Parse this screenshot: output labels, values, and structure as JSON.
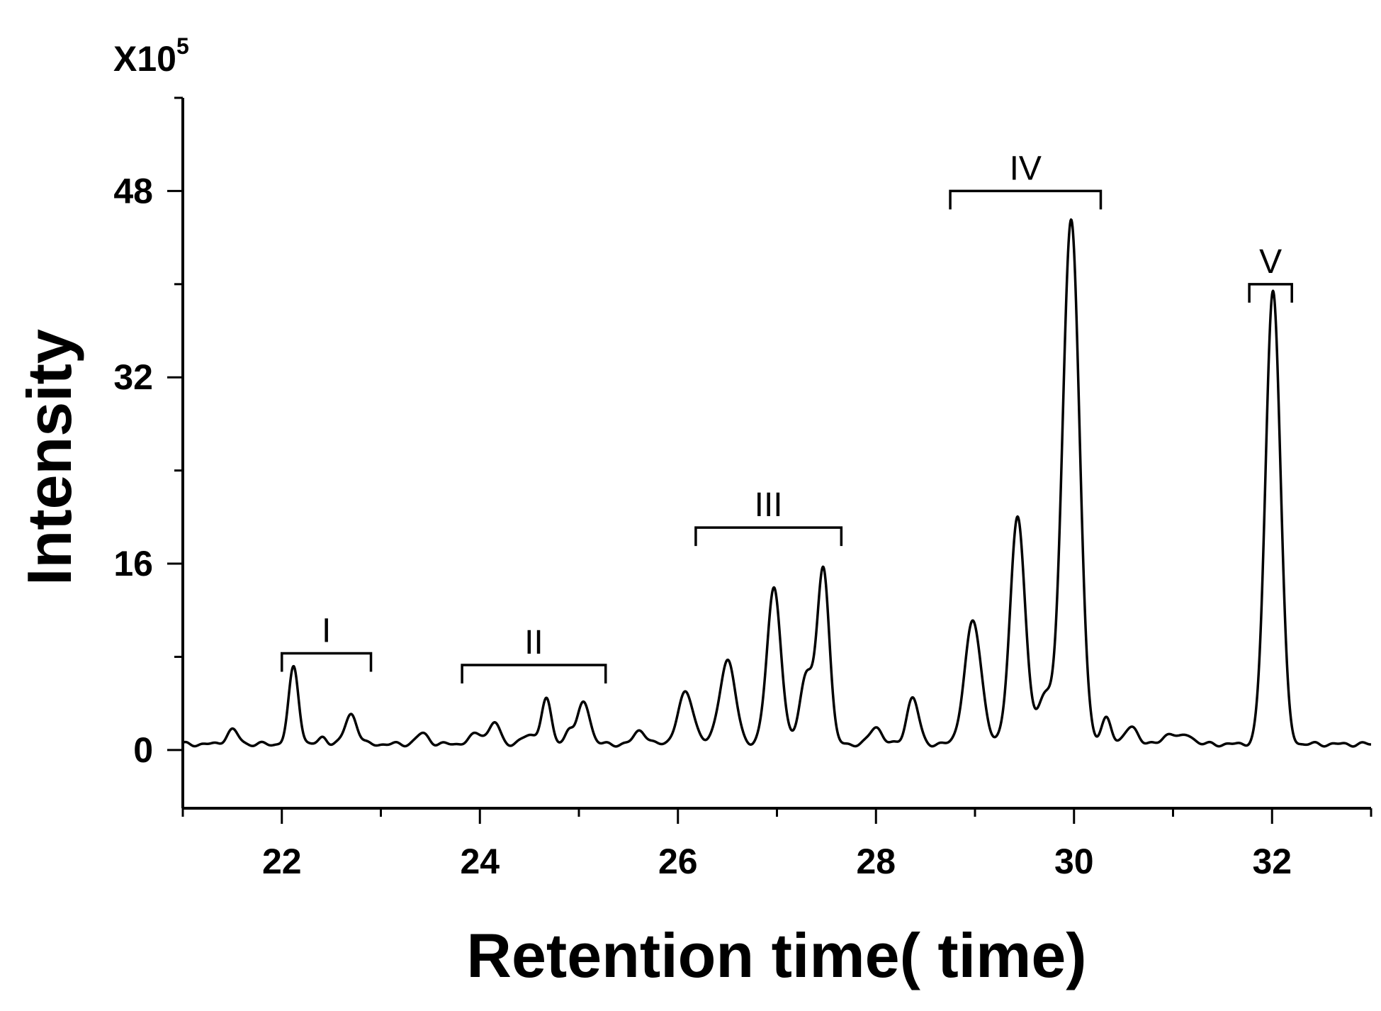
{
  "chart_data": {
    "type": "line",
    "xlabel": "Retention time( time)",
    "ylabel": "Intensity",
    "y_multiplier": "X10",
    "y_multiplier_exponent": "5",
    "xlim": [
      21.0,
      33.0
    ],
    "ylim": [
      -5,
      56
    ],
    "x_ticks": [
      22,
      24,
      26,
      28,
      30,
      32
    ],
    "y_ticks": [
      0,
      16,
      32,
      48
    ],
    "grid": false,
    "series": [
      {
        "peaks": [
          {
            "x": 21.5,
            "y": 1.2,
            "w": 0.06
          },
          {
            "x": 22.12,
            "y": 6.6,
            "w": 0.05
          },
          {
            "x": 22.42,
            "y": 0.6,
            "w": 0.04
          },
          {
            "x": 22.7,
            "y": 2.6,
            "w": 0.06
          },
          {
            "x": 23.42,
            "y": 0.9,
            "w": 0.06
          },
          {
            "x": 23.98,
            "y": 0.9,
            "w": 0.08
          },
          {
            "x": 24.15,
            "y": 1.8,
            "w": 0.05
          },
          {
            "x": 24.5,
            "y": 0.7,
            "w": 0.08
          },
          {
            "x": 24.67,
            "y": 3.8,
            "w": 0.05
          },
          {
            "x": 24.9,
            "y": 1.3,
            "w": 0.04
          },
          {
            "x": 25.05,
            "y": 3.7,
            "w": 0.06
          },
          {
            "x": 25.62,
            "y": 1.2,
            "w": 0.06
          },
          {
            "x": 26.08,
            "y": 4.4,
            "w": 0.08
          },
          {
            "x": 26.5,
            "y": 7.2,
            "w": 0.08
          },
          {
            "x": 26.97,
            "y": 13.5,
            "w": 0.07
          },
          {
            "x": 27.3,
            "y": 6.0,
            "w": 0.07
          },
          {
            "x": 27.47,
            "y": 15.0,
            "w": 0.06
          },
          {
            "x": 28.0,
            "y": 1.5,
            "w": 0.06
          },
          {
            "x": 28.37,
            "y": 4.0,
            "w": 0.06
          },
          {
            "x": 28.98,
            "y": 10.5,
            "w": 0.085
          },
          {
            "x": 29.43,
            "y": 19.5,
            "w": 0.075
          },
          {
            "x": 29.7,
            "y": 4.0,
            "w": 0.08
          },
          {
            "x": 29.97,
            "y": 45.0,
            "w": 0.085
          },
          {
            "x": 30.33,
            "y": 2.2,
            "w": 0.05
          },
          {
            "x": 30.58,
            "y": 1.4,
            "w": 0.07
          },
          {
            "x": 30.97,
            "y": 1.0,
            "w": 0.06
          },
          {
            "x": 31.15,
            "y": 0.8,
            "w": 0.06
          },
          {
            "x": 32.01,
            "y": 39.0,
            "w": 0.075
          }
        ]
      }
    ],
    "groups": [
      {
        "label": "I",
        "x_start": 22.0,
        "x_end": 22.9,
        "y": 8.3
      },
      {
        "label": "II",
        "x_start": 23.82,
        "x_end": 25.27,
        "y": 7.3
      },
      {
        "label": "III",
        "x_start": 26.18,
        "x_end": 27.65,
        "y": 19.1
      },
      {
        "label": "IV",
        "x_start": 28.75,
        "x_end": 30.27,
        "y": 48.0
      },
      {
        "label": "V",
        "x_start": 31.77,
        "x_end": 32.2,
        "y": 40.0
      }
    ]
  }
}
